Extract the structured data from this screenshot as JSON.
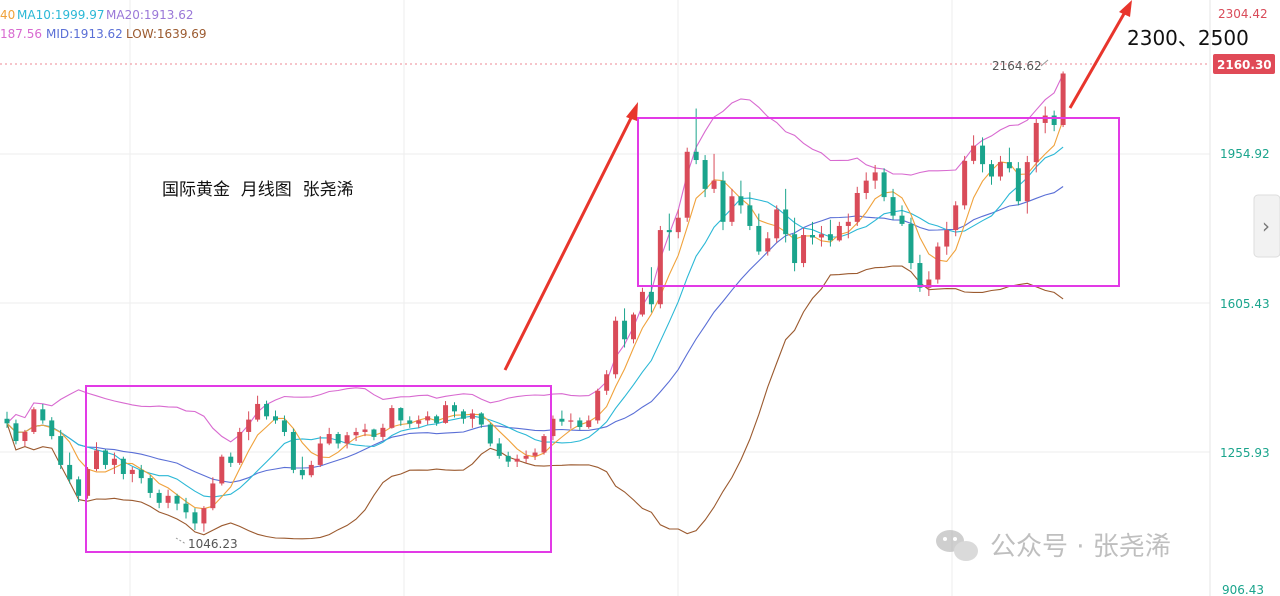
{
  "header": {
    "ma5_partial": "40",
    "ma10": "MA10:1999.97",
    "ma20": "MA20:1913.62",
    "up_partial": "187.56",
    "mid": "MID:1913.62",
    "low": "LOW:1639.69"
  },
  "price_axis": {
    "labels": [
      "2304.42",
      "1954.92",
      "1605.43",
      "1255.93",
      "906.43"
    ],
    "current_price": "2160.30"
  },
  "annotations": {
    "title": "国际黄金  月线图  张尧浠",
    "target": "2300、2500",
    "high_label": "2164.62",
    "low_label": "1046.23"
  },
  "watermark": {
    "text": "公众号 · 张尧浠"
  },
  "nav": {
    "next_arrow": "›"
  },
  "colors": {
    "up": "#d94b59",
    "down": "#1aa48c",
    "ma5": "#f0a23c",
    "ma10": "#2bb8d6",
    "ma20": "#5a6fd6",
    "boll_upper": "#d86ad0",
    "boll_lower": "#9b5a2f",
    "box": "#e23ae6",
    "arrow": "#e8352c",
    "current_price_bg": "#e04a57"
  },
  "chart_data": {
    "type": "candlestick",
    "y_range": [
      906.43,
      2304.42
    ],
    "current_price": 2160.3,
    "candles": [
      [
        1322,
        1339,
        1300,
        1311
      ],
      [
        1311,
        1320,
        1260,
        1268
      ],
      [
        1268,
        1295,
        1255,
        1290
      ],
      [
        1290,
        1350,
        1285,
        1345
      ],
      [
        1345,
        1358,
        1310,
        1318
      ],
      [
        1318,
        1326,
        1272,
        1280
      ],
      [
        1280,
        1295,
        1200,
        1210
      ],
      [
        1210,
        1240,
        1165,
        1175
      ],
      [
        1175,
        1182,
        1120,
        1135
      ],
      [
        1135,
        1205,
        1128,
        1200
      ],
      [
        1200,
        1265,
        1195,
        1245
      ],
      [
        1245,
        1248,
        1200,
        1210
      ],
      [
        1210,
        1240,
        1188,
        1225
      ],
      [
        1225,
        1230,
        1175,
        1188
      ],
      [
        1188,
        1205,
        1168,
        1198
      ],
      [
        1198,
        1210,
        1165,
        1178
      ],
      [
        1178,
        1185,
        1130,
        1142
      ],
      [
        1142,
        1150,
        1105,
        1118
      ],
      [
        1118,
        1150,
        1105,
        1135
      ],
      [
        1135,
        1140,
        1100,
        1116
      ],
      [
        1116,
        1130,
        1080,
        1095
      ],
      [
        1095,
        1105,
        1052,
        1068
      ],
      [
        1068,
        1110,
        1048,
        1105
      ],
      [
        1105,
        1180,
        1100,
        1165
      ],
      [
        1165,
        1235,
        1160,
        1230
      ],
      [
        1230,
        1240,
        1205,
        1215
      ],
      [
        1215,
        1300,
        1210,
        1290
      ],
      [
        1290,
        1340,
        1270,
        1320
      ],
      [
        1320,
        1378,
        1315,
        1358
      ],
      [
        1358,
        1366,
        1320,
        1328
      ],
      [
        1328,
        1342,
        1310,
        1318
      ],
      [
        1318,
        1330,
        1280,
        1290
      ],
      [
        1290,
        1298,
        1190,
        1198
      ],
      [
        1198,
        1230,
        1175,
        1185
      ],
      [
        1185,
        1220,
        1180,
        1210
      ],
      [
        1210,
        1280,
        1205,
        1262
      ],
      [
        1262,
        1300,
        1258,
        1285
      ],
      [
        1285,
        1290,
        1250,
        1262
      ],
      [
        1262,
        1290,
        1250,
        1282
      ],
      [
        1282,
        1300,
        1268,
        1290
      ],
      [
        1290,
        1310,
        1280,
        1296
      ],
      [
        1296,
        1298,
        1270,
        1278
      ],
      [
        1278,
        1310,
        1270,
        1300
      ],
      [
        1300,
        1355,
        1298,
        1348
      ],
      [
        1348,
        1350,
        1305,
        1318
      ],
      [
        1318,
        1328,
        1300,
        1310
      ],
      [
        1310,
        1330,
        1300,
        1318
      ],
      [
        1318,
        1340,
        1308,
        1328
      ],
      [
        1328,
        1332,
        1305,
        1312
      ],
      [
        1312,
        1365,
        1310,
        1355
      ],
      [
        1355,
        1362,
        1325,
        1340
      ],
      [
        1340,
        1345,
        1310,
        1322
      ],
      [
        1322,
        1345,
        1300,
        1335
      ],
      [
        1335,
        1338,
        1300,
        1308
      ],
      [
        1308,
        1312,
        1255,
        1262
      ],
      [
        1262,
        1275,
        1225,
        1232
      ],
      [
        1232,
        1242,
        1205,
        1218
      ],
      [
        1218,
        1235,
        1205,
        1225
      ],
      [
        1225,
        1245,
        1215,
        1232
      ],
      [
        1232,
        1250,
        1222,
        1240
      ],
      [
        1240,
        1285,
        1235,
        1280
      ],
      [
        1280,
        1330,
        1270,
        1322
      ],
      [
        1322,
        1342,
        1305,
        1315
      ],
      [
        1315,
        1335,
        1298,
        1318
      ],
      [
        1318,
        1325,
        1295,
        1302
      ],
      [
        1302,
        1330,
        1298,
        1318
      ],
      [
        1318,
        1395,
        1310,
        1390
      ],
      [
        1390,
        1440,
        1380,
        1430
      ],
      [
        1430,
        1570,
        1420,
        1560
      ],
      [
        1560,
        1590,
        1495,
        1515
      ],
      [
        1515,
        1580,
        1505,
        1575
      ],
      [
        1575,
        1640,
        1570,
        1630
      ],
      [
        1630,
        1690,
        1580,
        1600
      ],
      [
        1600,
        1790,
        1590,
        1780
      ],
      [
        1780,
        1820,
        1730,
        1775
      ],
      [
        1775,
        1830,
        1760,
        1810
      ],
      [
        1810,
        1980,
        1800,
        1970
      ],
      [
        1970,
        2075,
        1940,
        1950
      ],
      [
        1950,
        1962,
        1860,
        1880
      ],
      [
        1880,
        1965,
        1870,
        1900
      ],
      [
        1900,
        1922,
        1780,
        1800
      ],
      [
        1800,
        1880,
        1790,
        1862
      ],
      [
        1862,
        1900,
        1820,
        1840
      ],
      [
        1840,
        1872,
        1780,
        1790
      ],
      [
        1790,
        1820,
        1720,
        1728
      ],
      [
        1728,
        1775,
        1718,
        1760
      ],
      [
        1760,
        1840,
        1750,
        1830
      ],
      [
        1830,
        1880,
        1750,
        1770
      ],
      [
        1770,
        1810,
        1680,
        1700
      ],
      [
        1700,
        1785,
        1690,
        1768
      ],
      [
        1768,
        1800,
        1745,
        1762
      ],
      [
        1762,
        1790,
        1740,
        1770
      ],
      [
        1770,
        1805,
        1740,
        1755
      ],
      [
        1755,
        1800,
        1752,
        1790
      ],
      [
        1790,
        1820,
        1760,
        1800
      ],
      [
        1800,
        1885,
        1790,
        1870
      ],
      [
        1870,
        1920,
        1855,
        1900
      ],
      [
        1900,
        1938,
        1880,
        1920
      ],
      [
        1920,
        1930,
        1850,
        1860
      ],
      [
        1860,
        1880,
        1805,
        1815
      ],
      [
        1815,
        1840,
        1790,
        1795
      ],
      [
        1795,
        1810,
        1685,
        1700
      ],
      [
        1700,
        1720,
        1630,
        1640
      ],
      [
        1640,
        1680,
        1620,
        1660
      ],
      [
        1660,
        1750,
        1650,
        1740
      ],
      [
        1740,
        1800,
        1720,
        1780
      ],
      [
        1780,
        1850,
        1765,
        1840
      ],
      [
        1840,
        1960,
        1830,
        1948
      ],
      [
        1948,
        2010,
        1940,
        1985
      ],
      [
        1985,
        2005,
        1920,
        1940
      ],
      [
        1940,
        1950,
        1890,
        1910
      ],
      [
        1910,
        1960,
        1900,
        1945
      ],
      [
        1945,
        1980,
        1920,
        1930
      ],
      [
        1930,
        1945,
        1840,
        1850
      ],
      [
        1850,
        1960,
        1820,
        1945
      ],
      [
        1945,
        2050,
        1920,
        2040
      ],
      [
        2040,
        2080,
        2015,
        2058
      ],
      [
        2058,
        2070,
        2020,
        2035
      ],
      [
        2035,
        2165,
        2030,
        2160
      ]
    ]
  }
}
